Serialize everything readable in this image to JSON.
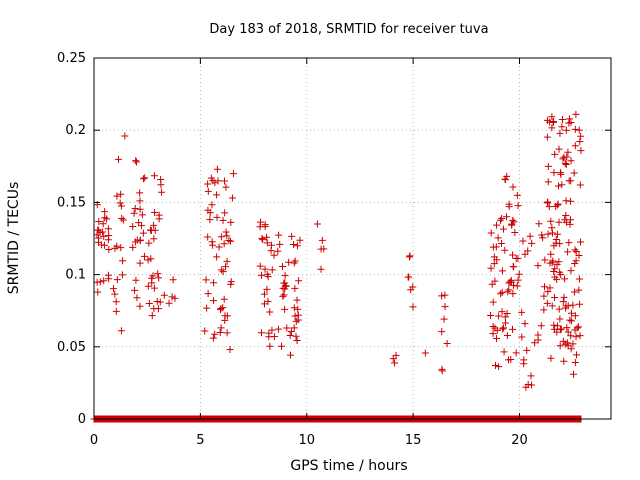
{
  "chart_data": {
    "type": "scatter",
    "title": "Day 183 of 2018, SRMTID for receiver tuva",
    "xlabel": "GPS time / hours",
    "ylabel": "SRMTID / TECUs",
    "xlim": [
      0,
      24.3
    ],
    "ylim": [
      0,
      0.25
    ],
    "xticks": [
      0,
      5,
      10,
      15,
      20
    ],
    "xtick_labels": [
      "0",
      "5",
      "10",
      "15",
      "20"
    ],
    "yticks": [
      0,
      0.05,
      0.1,
      0.15,
      0.2,
      0.25
    ],
    "ytick_labels": [
      "0",
      "0.05",
      "0.1",
      "0.15",
      "0.2",
      "0.25"
    ],
    "grid": true,
    "marker": "+",
    "color": "#cc0000",
    "baseline_series": {
      "description": "dense row of zero-valued points along the x-axis",
      "y": 0,
      "x_start": 0,
      "x_end": 22.9,
      "x_step": 0.03
    },
    "clusters": [
      {
        "x": [
          0.1,
          0.7
        ],
        "y": [
          0.08,
          0.15
        ],
        "n": 26
      },
      {
        "x": [
          0.9,
          1.4
        ],
        "y": [
          0.06,
          0.18
        ],
        "n": 18
      },
      {
        "x": [
          1.7,
          2.4
        ],
        "y": [
          0.07,
          0.18
        ],
        "n": 24
      },
      {
        "x": [
          2.5,
          3.2
        ],
        "y": [
          0.07,
          0.17
        ],
        "n": 28
      },
      {
        "x": [
          3.3,
          3.9
        ],
        "y": [
          0.07,
          0.11
        ],
        "n": 5
      },
      {
        "x": [
          5.2,
          6.6
        ],
        "y": [
          0.04,
          0.17
        ],
        "n": 55
      },
      {
        "x": [
          7.8,
          8.5
        ],
        "y": [
          0.04,
          0.14
        ],
        "n": 28
      },
      {
        "x": [
          8.6,
          9.8
        ],
        "y": [
          0.04,
          0.13
        ],
        "n": 40
      },
      {
        "x": [
          10.4,
          10.8
        ],
        "y": [
          0.1,
          0.135
        ],
        "n": 4
      },
      {
        "x": [
          14.0,
          14.2
        ],
        "y": [
          0.033,
          0.045
        ],
        "n": 3
      },
      {
        "x": [
          14.7,
          15.0
        ],
        "y": [
          0.06,
          0.115
        ],
        "n": 6
      },
      {
        "x": [
          15.5,
          15.8
        ],
        "y": [
          0.045,
          0.046
        ],
        "n": 1
      },
      {
        "x": [
          16.3,
          16.6
        ],
        "y": [
          0.033,
          0.09
        ],
        "n": 8
      },
      {
        "x": [
          18.6,
          19.3
        ],
        "y": [
          0.035,
          0.14
        ],
        "n": 32
      },
      {
        "x": [
          19.3,
          20.0
        ],
        "y": [
          0.04,
          0.17
        ],
        "n": 38
      },
      {
        "x": [
          20.1,
          20.6
        ],
        "y": [
          0.01,
          0.13
        ],
        "n": 14
      },
      {
        "x": [
          20.7,
          21.2
        ],
        "y": [
          0.05,
          0.15
        ],
        "n": 12
      },
      {
        "x": [
          21.3,
          22.0
        ],
        "y": [
          0.03,
          0.21
        ],
        "n": 60
      },
      {
        "x": [
          22.0,
          22.9
        ],
        "y": [
          0.03,
          0.21
        ],
        "n": 70
      }
    ],
    "extra_points": [
      {
        "x": 1.45,
        "y": 0.196
      },
      {
        "x": 2.0,
        "y": 0.178
      },
      {
        "x": 5.8,
        "y": 0.173
      },
      {
        "x": 10.5,
        "y": 0.135
      },
      {
        "x": 14.85,
        "y": 0.113
      },
      {
        "x": 19.4,
        "y": 0.168
      },
      {
        "x": 20.3,
        "y": 0.022
      },
      {
        "x": 21.6,
        "y": 0.206
      },
      {
        "x": 22.65,
        "y": 0.211
      },
      {
        "x": 22.2,
        "y": 0.2
      }
    ]
  }
}
